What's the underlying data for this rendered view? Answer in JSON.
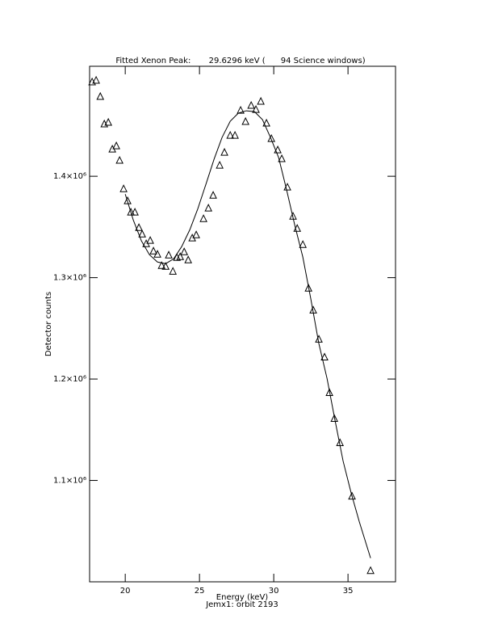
{
  "chart_data": {
    "type": "scatter",
    "title": "Fitted Xenon Peak:       29.6296 keV (      94 Science windows)",
    "xlabel": "Energy (keV)",
    "subtitle": "Jemx1: orbit 2193",
    "ylabel": "Detector counts",
    "xlim": [
      17.6,
      38.2
    ],
    "ylim": [
      1000000,
      1508500
    ],
    "xticks": [
      20,
      25,
      30,
      35
    ],
    "yticks": [
      {
        "value": 1100000,
        "label": "1.1×10⁶"
      },
      {
        "value": 1200000,
        "label": "1.2×10⁶"
      },
      {
        "value": 1300000,
        "label": "1.3×10⁶"
      },
      {
        "value": 1400000,
        "label": "1.4×10⁶"
      }
    ],
    "series": [
      {
        "type": "scatter",
        "color": "#000000",
        "x": [
          17.77,
          18.04,
          18.32,
          18.59,
          18.86,
          19.13,
          19.4,
          19.62,
          19.89,
          20.16,
          20.38,
          20.65,
          20.92,
          21.14,
          21.41,
          21.68,
          21.9,
          22.17,
          22.45,
          22.72,
          22.93,
          23.21,
          23.48,
          23.7,
          23.97,
          24.24,
          24.51,
          24.78,
          25.27,
          25.6,
          25.92,
          26.36,
          26.68,
          27.07,
          27.39,
          27.77,
          28.1,
          28.48,
          28.8,
          29.13,
          29.51,
          29.84,
          30.27,
          30.54,
          30.92,
          31.3,
          31.58,
          31.96,
          32.34,
          32.66,
          33.04,
          33.42,
          33.75,
          34.08,
          34.46,
          35.27,
          36.52
        ],
        "values": [
          1492600,
          1494200,
          1478200,
          1451100,
          1452700,
          1426300,
          1429500,
          1415200,
          1387200,
          1375300,
          1364100,
          1364100,
          1348900,
          1342500,
          1333000,
          1336200,
          1325800,
          1322600,
          1311400,
          1310600,
          1321800,
          1305800,
          1319400,
          1320200,
          1325000,
          1317000,
          1338600,
          1341700,
          1357700,
          1368100,
          1380800,
          1410400,
          1423100,
          1439900,
          1439900,
          1464600,
          1453500,
          1469400,
          1465400,
          1473400,
          1451900,
          1436700,
          1425500,
          1416800,
          1388800,
          1360100,
          1348100,
          1332200,
          1289100,
          1267500,
          1238800,
          1221200,
          1186100,
          1160600,
          1136700,
          1084000,
          1010600
        ]
      },
      {
        "type": "line",
        "color": "#000000",
        "x": [
          20.0,
          20.54,
          21.09,
          21.63,
          22.17,
          22.72,
          23.26,
          23.8,
          24.35,
          24.89,
          25.43,
          25.98,
          26.52,
          27.07,
          27.61,
          28.15,
          28.7,
          29.24,
          29.78,
          30.33,
          30.87,
          31.41,
          31.96,
          32.5,
          33.04,
          33.59,
          34.13,
          34.67,
          35.22,
          35.76,
          36.52
        ],
        "values": [
          1382400,
          1356900,
          1336200,
          1322600,
          1315400,
          1313800,
          1318600,
          1330600,
          1347300,
          1368100,
          1392000,
          1416800,
          1438300,
          1454300,
          1462200,
          1464600,
          1463800,
          1455900,
          1438300,
          1418400,
          1386400,
          1352100,
          1320200,
          1278700,
          1234800,
          1200500,
          1159000,
          1119100,
          1087200,
          1059300,
          1023400
        ]
      }
    ]
  }
}
